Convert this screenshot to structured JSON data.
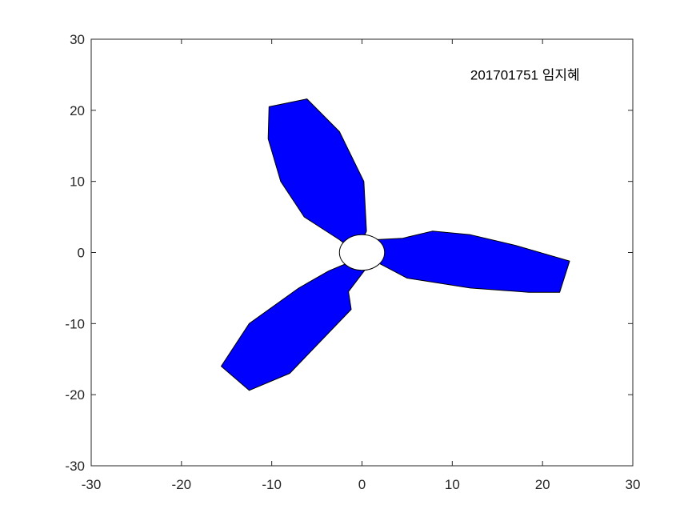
{
  "chart_data": {
    "type": "area",
    "title": "",
    "xlabel": "",
    "ylabel": "",
    "xlim": [
      -30,
      30
    ],
    "ylim": [
      -30,
      30
    ],
    "xticks": [
      -30,
      -20,
      -10,
      0,
      10,
      20,
      30
    ],
    "yticks": [
      -30,
      -20,
      -10,
      0,
      10,
      20,
      30
    ],
    "grid": false,
    "box": true,
    "annotation": {
      "text": "201701751 임지혜",
      "x": 12,
      "y": 25
    },
    "series": [
      {
        "shape": "blade",
        "color": "#0000ff",
        "x": [
          -2.5,
          -6.4,
          -9.0,
          -10.4,
          -10.3,
          -6.1,
          -2.5,
          0.2,
          0.5,
          -0.4,
          -1.5,
          -2.5
        ],
        "y": [
          1.8,
          5.0,
          10.0,
          16.0,
          20.5,
          21.6,
          17.0,
          10.0,
          3.0,
          0.5,
          0.8,
          1.8
        ]
      },
      {
        "shape": "blade",
        "color": "#0000ff",
        "x": [
          1.5,
          4.5,
          7.8,
          12.0,
          17.0,
          23.0,
          21.9,
          18.5,
          12.0,
          5.0,
          2.0,
          1.5
        ],
        "y": [
          1.8,
          2.0,
          3.0,
          2.5,
          1.0,
          -1.2,
          -5.6,
          -5.6,
          -5.0,
          -3.6,
          -1.6,
          1.8
        ]
      },
      {
        "shape": "blade",
        "color": "#0000ff",
        "x": [
          -1.0,
          -2.2,
          -3.7,
          -7.0,
          -12.5,
          -15.6,
          -12.5,
          -8.0,
          -1.2,
          -1.5,
          0.3,
          -1.0
        ],
        "y": [
          -1.2,
          -1.8,
          -2.6,
          -5.0,
          -10.0,
          -16.0,
          -19.4,
          -17.0,
          -8.0,
          -5.5,
          -2.5,
          -1.2
        ]
      },
      {
        "shape": "hub",
        "color": "#ffffff",
        "cx": 0,
        "cy": 0,
        "rx": 2.5,
        "ry": 2.5
      }
    ]
  }
}
